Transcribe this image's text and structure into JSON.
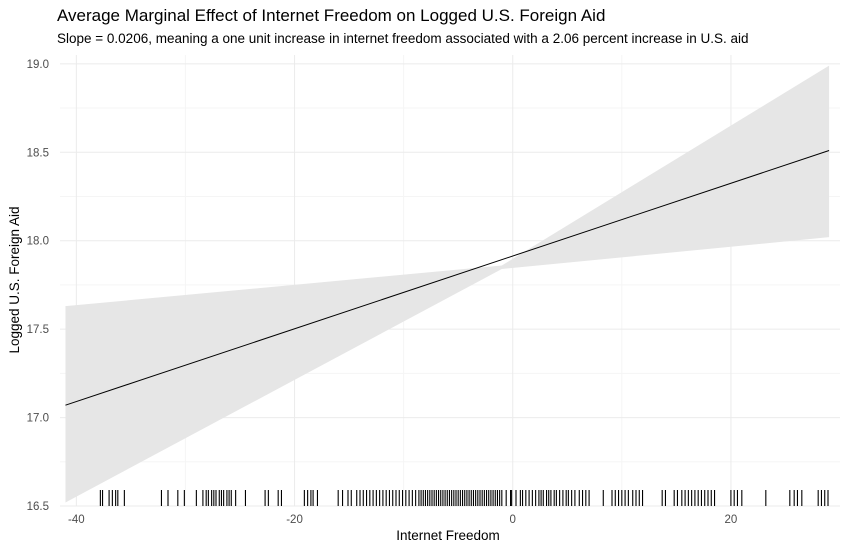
{
  "chart_data": {
    "type": "line",
    "title": "Average Marginal Effect of Internet Freedom on Logged U.S. Foreign Aid",
    "subtitle": "Slope = 0.0206, meaning a one unit increase in internet freedom associated with a 2.06 percent increase in U.S. aid",
    "xlabel": "Internet Freedom",
    "ylabel": "Logged U.S. Foreign Aid",
    "xlim": [
      -41.5,
      30
    ],
    "ylim": [
      16.5,
      19.05
    ],
    "x_ticks": [
      {
        "value": -40,
        "label": "-40"
      },
      {
        "value": -20,
        "label": "-20"
      },
      {
        "value": 0,
        "label": "0"
      },
      {
        "value": 20,
        "label": "20"
      }
    ],
    "y_ticks": [
      {
        "value": 16.5,
        "label": "16.5"
      },
      {
        "value": 17.0,
        "label": "17.0"
      },
      {
        "value": 17.5,
        "label": "17.5"
      },
      {
        "value": 18.0,
        "label": "18.0"
      },
      {
        "value": 18.5,
        "label": "18.5"
      },
      {
        "value": 19.0,
        "label": "19.0"
      }
    ],
    "grid": true,
    "fit_line": {
      "x": [
        -41,
        29
      ],
      "y": [
        17.07,
        18.51
      ]
    },
    "confidence_band": {
      "x": [
        -41,
        -1,
        29
      ],
      "lower": [
        16.52,
        17.84,
        18.02
      ],
      "upper": [
        17.63,
        17.86,
        18.99
      ]
    },
    "rug_x": [
      -37.8,
      -37.6,
      -37.0,
      -36.7,
      -36.4,
      -36.2,
      -35.6,
      -32.2,
      -31.6,
      -30.7,
      -30.1,
      -29.0,
      -28.4,
      -28.1,
      -27.9,
      -27.6,
      -27.4,
      -27.2,
      -26.9,
      -26.7,
      -26.5,
      -26.2,
      -26.0,
      -25.8,
      -25.4,
      -24.5,
      -22.7,
      -22.4,
      -21.5,
      -21.2,
      -19.1,
      -18.8,
      -18.5,
      -18.3,
      -17.9,
      -16.0,
      -15.6,
      -15.1,
      -14.8,
      -14.3,
      -14.0,
      -13.7,
      -13.4,
      -13.1,
      -12.8,
      -12.5,
      -12.2,
      -11.9,
      -11.6,
      -11.3,
      -11.0,
      -10.7,
      -10.4,
      -10.1,
      -9.8,
      -9.5,
      -9.2,
      -8.9,
      -8.6,
      -8.4,
      -8.2,
      -8.0,
      -7.8,
      -7.6,
      -7.4,
      -7.2,
      -7.0,
      -6.8,
      -6.6,
      -6.4,
      -6.2,
      -6.0,
      -5.8,
      -5.6,
      -5.4,
      -5.2,
      -5.0,
      -4.8,
      -4.6,
      -4.4,
      -4.2,
      -4.0,
      -3.8,
      -3.6,
      -3.4,
      -3.2,
      -3.0,
      -2.8,
      -2.6,
      -2.4,
      -2.2,
      -2.0,
      -1.8,
      -1.6,
      -1.4,
      -1.2,
      -1.0,
      -0.6,
      -0.2,
      -0.1,
      0.3,
      0.7,
      0.9,
      1.2,
      1.5,
      1.8,
      2.1,
      2.4,
      2.6,
      2.8,
      3.1,
      3.3,
      3.5,
      3.8,
      4.0,
      4.3,
      4.6,
      4.9,
      5.1,
      5.4,
      5.7,
      6.1,
      6.4,
      6.7,
      7.0,
      8.3,
      9.1,
      9.4,
      9.7,
      10.0,
      10.3,
      10.6,
      11.0,
      11.3,
      11.6,
      11.9,
      13.7,
      14.0,
      14.8,
      15.1,
      15.5,
      15.8,
      16.1,
      16.4,
      16.7,
      17.0,
      17.3,
      17.6,
      17.9,
      18.2,
      18.5,
      20.0,
      20.3,
      20.6,
      21.0,
      23.2,
      25.4,
      25.8,
      26.1,
      26.5,
      28.0,
      28.3,
      28.6,
      28.9
    ]
  }
}
